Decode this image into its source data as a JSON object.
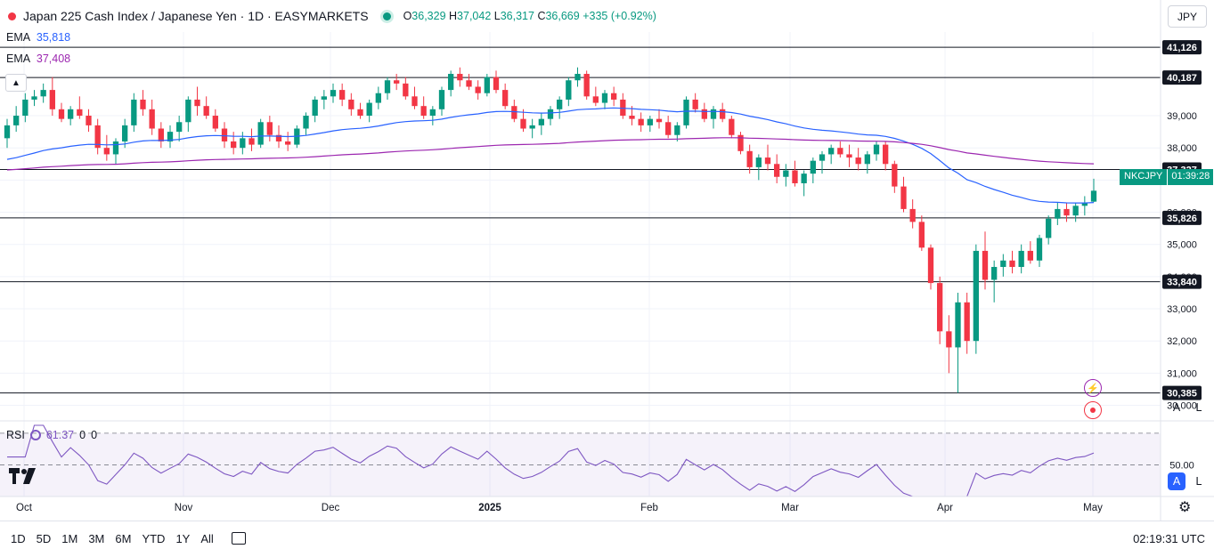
{
  "header": {
    "title": "Japan 225 Cash Index / Japanese Yen · 1D · EASYMARKETS",
    "open_label": "O",
    "open": "36,329",
    "high_label": "H",
    "high": "37,042",
    "low_label": "L",
    "low": "36,317",
    "close_label": "C",
    "close": "36,669",
    "change": "+335 (+0.92%)"
  },
  "ema_fast": {
    "label": "EMA",
    "value": "35,818",
    "color": "#2962ff"
  },
  "ema_slow": {
    "label": "EMA",
    "value": "37,408",
    "color": "#9c27b0"
  },
  "currency": "JPY",
  "price_axis": {
    "ticks": [
      "39,000",
      "38,000",
      "37,000",
      "36,000",
      "35,000",
      "34,000",
      "33,000",
      "32,000",
      "31,000",
      "30,000"
    ],
    "level_labels": [
      "41,126",
      "40,187",
      "37,327",
      "35,826",
      "33,840",
      "30,385"
    ],
    "symbol_tag": "NKCJPY",
    "countdown": "01:39:28",
    "scale_auto": "A",
    "scale_log": "L"
  },
  "rsi": {
    "label": "RSI",
    "value": "61.37",
    "extra1": "0",
    "extra2": "0",
    "mid_label": "50.00"
  },
  "time_axis": {
    "labels": [
      "Oct",
      "Nov",
      "Dec",
      "2025",
      "Feb",
      "Mar",
      "Apr",
      "May"
    ]
  },
  "timeframes": [
    "1D",
    "5D",
    "1M",
    "3M",
    "6M",
    "YTD",
    "1Y",
    "All"
  ],
  "clock": "02:19:31 UTC",
  "colors": {
    "up": "#089981",
    "down": "#f23645",
    "ema_fast": "#2962ff",
    "ema_slow": "#9c27b0",
    "rsi": "#7e57c2"
  },
  "icons": [
    "tradingview-logo-icon",
    "calendar-range-icon",
    "settings-gear-icon",
    "lightning-icon",
    "target-icon",
    "rsi-settings-icon"
  ],
  "chart_data": {
    "type": "candlestick",
    "x_axis_labels": [
      "Oct",
      "Nov",
      "Dec",
      "2025",
      "Feb",
      "Mar",
      "Apr",
      "May"
    ],
    "ylim": [
      29600,
      41600
    ],
    "horizontal_levels": [
      41126,
      40187,
      37327,
      35826,
      33840,
      30385
    ],
    "last_close": 36669,
    "candles": [
      [
        38300,
        38900,
        38000,
        38700
      ],
      [
        38700,
        39300,
        38500,
        39000
      ],
      [
        39000,
        39700,
        38800,
        39500
      ],
      [
        39500,
        39800,
        39300,
        39600
      ],
      [
        39600,
        40000,
        39400,
        39800
      ],
      [
        39800,
        40200,
        39000,
        39200
      ],
      [
        39200,
        39400,
        38800,
        38900
      ],
      [
        38900,
        39300,
        38700,
        39200
      ],
      [
        39200,
        39600,
        38900,
        39000
      ],
      [
        39000,
        39200,
        38500,
        38700
      ],
      [
        38700,
        38900,
        37800,
        38000
      ],
      [
        38000,
        38400,
        37600,
        37800
      ],
      [
        37800,
        38300,
        37500,
        38200
      ],
      [
        38200,
        38900,
        38000,
        38700
      ],
      [
        38700,
        39700,
        38500,
        39500
      ],
      [
        39500,
        39800,
        39000,
        39200
      ],
      [
        39200,
        39500,
        38400,
        38600
      ],
      [
        38600,
        38800,
        38000,
        38200
      ],
      [
        38200,
        38700,
        38000,
        38500
      ],
      [
        38500,
        39000,
        38200,
        38800
      ],
      [
        38800,
        39600,
        38500,
        39500
      ],
      [
        39500,
        39900,
        39000,
        39300
      ],
      [
        39300,
        39600,
        38900,
        39000
      ],
      [
        39000,
        39200,
        38500,
        38600
      ],
      [
        38600,
        38800,
        38000,
        38200
      ],
      [
        38200,
        38500,
        37800,
        38000
      ],
      [
        38000,
        38500,
        37800,
        38300
      ],
      [
        38300,
        38600,
        37900,
        38100
      ],
      [
        38100,
        38900,
        38000,
        38800
      ],
      [
        38800,
        39000,
        38200,
        38400
      ],
      [
        38400,
        38700,
        38000,
        38200
      ],
      [
        38200,
        38500,
        37900,
        38100
      ],
      [
        38100,
        38700,
        38000,
        38600
      ],
      [
        38600,
        39100,
        38400,
        39000
      ],
      [
        39000,
        39600,
        38800,
        39500
      ],
      [
        39500,
        39800,
        39200,
        39600
      ],
      [
        39600,
        40000,
        39400,
        39800
      ],
      [
        39800,
        40000,
        39300,
        39500
      ],
      [
        39500,
        39700,
        39000,
        39200
      ],
      [
        39200,
        39400,
        38900,
        39000
      ],
      [
        39000,
        39500,
        38800,
        39400
      ],
      [
        39400,
        39900,
        39200,
        39700
      ],
      [
        39700,
        40200,
        39500,
        40100
      ],
      [
        40100,
        40300,
        39800,
        40000
      ],
      [
        40000,
        40200,
        39500,
        39600
      ],
      [
        39600,
        39900,
        39200,
        39300
      ],
      [
        39300,
        39600,
        38900,
        39000
      ],
      [
        39000,
        39300,
        38700,
        39200
      ],
      [
        39200,
        39900,
        39000,
        39800
      ],
      [
        39800,
        40400,
        39600,
        40300
      ],
      [
        40300,
        40500,
        39900,
        40100
      ],
      [
        40100,
        40300,
        39800,
        39900
      ],
      [
        39900,
        40100,
        39500,
        39700
      ],
      [
        39700,
        40300,
        39600,
        40200
      ],
      [
        40200,
        40400,
        39700,
        39800
      ],
      [
        39800,
        40000,
        39200,
        39300
      ],
      [
        39300,
        39500,
        38800,
        38900
      ],
      [
        38900,
        39200,
        38500,
        38600
      ],
      [
        38600,
        38900,
        38300,
        38700
      ],
      [
        38700,
        39100,
        38400,
        38900
      ],
      [
        38900,
        39300,
        38700,
        39200
      ],
      [
        39200,
        39600,
        38900,
        39500
      ],
      [
        39500,
        40200,
        39300,
        40100
      ],
      [
        40100,
        40500,
        39900,
        40300
      ],
      [
        40300,
        40400,
        39500,
        39600
      ],
      [
        39600,
        39900,
        39300,
        39400
      ],
      [
        39400,
        39800,
        39200,
        39700
      ],
      [
        39700,
        39900,
        39300,
        39500
      ],
      [
        39500,
        39700,
        38900,
        39000
      ],
      [
        39000,
        39300,
        38700,
        38900
      ],
      [
        38900,
        39100,
        38500,
        38700
      ],
      [
        38700,
        39000,
        38500,
        38900
      ],
      [
        38900,
        39200,
        38600,
        38800
      ],
      [
        38800,
        39000,
        38300,
        38400
      ],
      [
        38400,
        38800,
        38200,
        38700
      ],
      [
        38700,
        39600,
        38600,
        39500
      ],
      [
        39500,
        39700,
        39100,
        39200
      ],
      [
        39200,
        39400,
        38800,
        38900
      ],
      [
        38900,
        39300,
        38600,
        39200
      ],
      [
        39200,
        39400,
        38800,
        38900
      ],
      [
        38900,
        39000,
        38300,
        38400
      ],
      [
        38400,
        38500,
        37800,
        37900
      ],
      [
        37900,
        38100,
        37200,
        37400
      ],
      [
        37400,
        37800,
        37000,
        37700
      ],
      [
        37700,
        38100,
        37300,
        37500
      ],
      [
        37500,
        37800,
        36900,
        37100
      ],
      [
        37100,
        37500,
        36800,
        37300
      ],
      [
        37300,
        37600,
        36800,
        36900
      ],
      [
        36900,
        37300,
        36500,
        37200
      ],
      [
        37200,
        37700,
        36900,
        37600
      ],
      [
        37600,
        37900,
        37200,
        37800
      ],
      [
        37800,
        38100,
        37500,
        38000
      ],
      [
        38000,
        38200,
        37700,
        37800
      ],
      [
        37800,
        38100,
        37400,
        37700
      ],
      [
        37700,
        38000,
        37300,
        37500
      ],
      [
        37500,
        37900,
        37200,
        37800
      ],
      [
        37800,
        38200,
        37600,
        38100
      ],
      [
        38100,
        38200,
        37300,
        37500
      ],
      [
        37500,
        37600,
        36600,
        36800
      ],
      [
        36800,
        37100,
        36000,
        36100
      ],
      [
        36100,
        36400,
        35500,
        35700
      ],
      [
        35700,
        35900,
        34800,
        34900
      ],
      [
        34900,
        35000,
        33600,
        33800
      ],
      [
        33800,
        34000,
        31900,
        32300
      ],
      [
        32300,
        32800,
        31000,
        31800
      ],
      [
        31800,
        33500,
        30385,
        33200
      ],
      [
        33200,
        33500,
        31600,
        32000
      ],
      [
        32000,
        35000,
        31600,
        34800
      ],
      [
        34800,
        35400,
        33600,
        33900
      ],
      [
        33900,
        34500,
        33200,
        34300
      ],
      [
        34300,
        34700,
        34000,
        34500
      ],
      [
        34500,
        34800,
        34100,
        34300
      ],
      [
        34300,
        35000,
        34100,
        34800
      ],
      [
        34800,
        35100,
        34400,
        34500
      ],
      [
        34500,
        35300,
        34300,
        35200
      ],
      [
        35200,
        35900,
        35000,
        35800
      ],
      [
        35800,
        36300,
        35600,
        36100
      ],
      [
        36100,
        36300,
        35700,
        35900
      ],
      [
        35900,
        36300,
        35700,
        36200
      ],
      [
        36200,
        36500,
        35900,
        36300
      ],
      [
        36329,
        37042,
        36317,
        36669
      ]
    ],
    "rsi_ylim": [
      30,
      75
    ]
  }
}
